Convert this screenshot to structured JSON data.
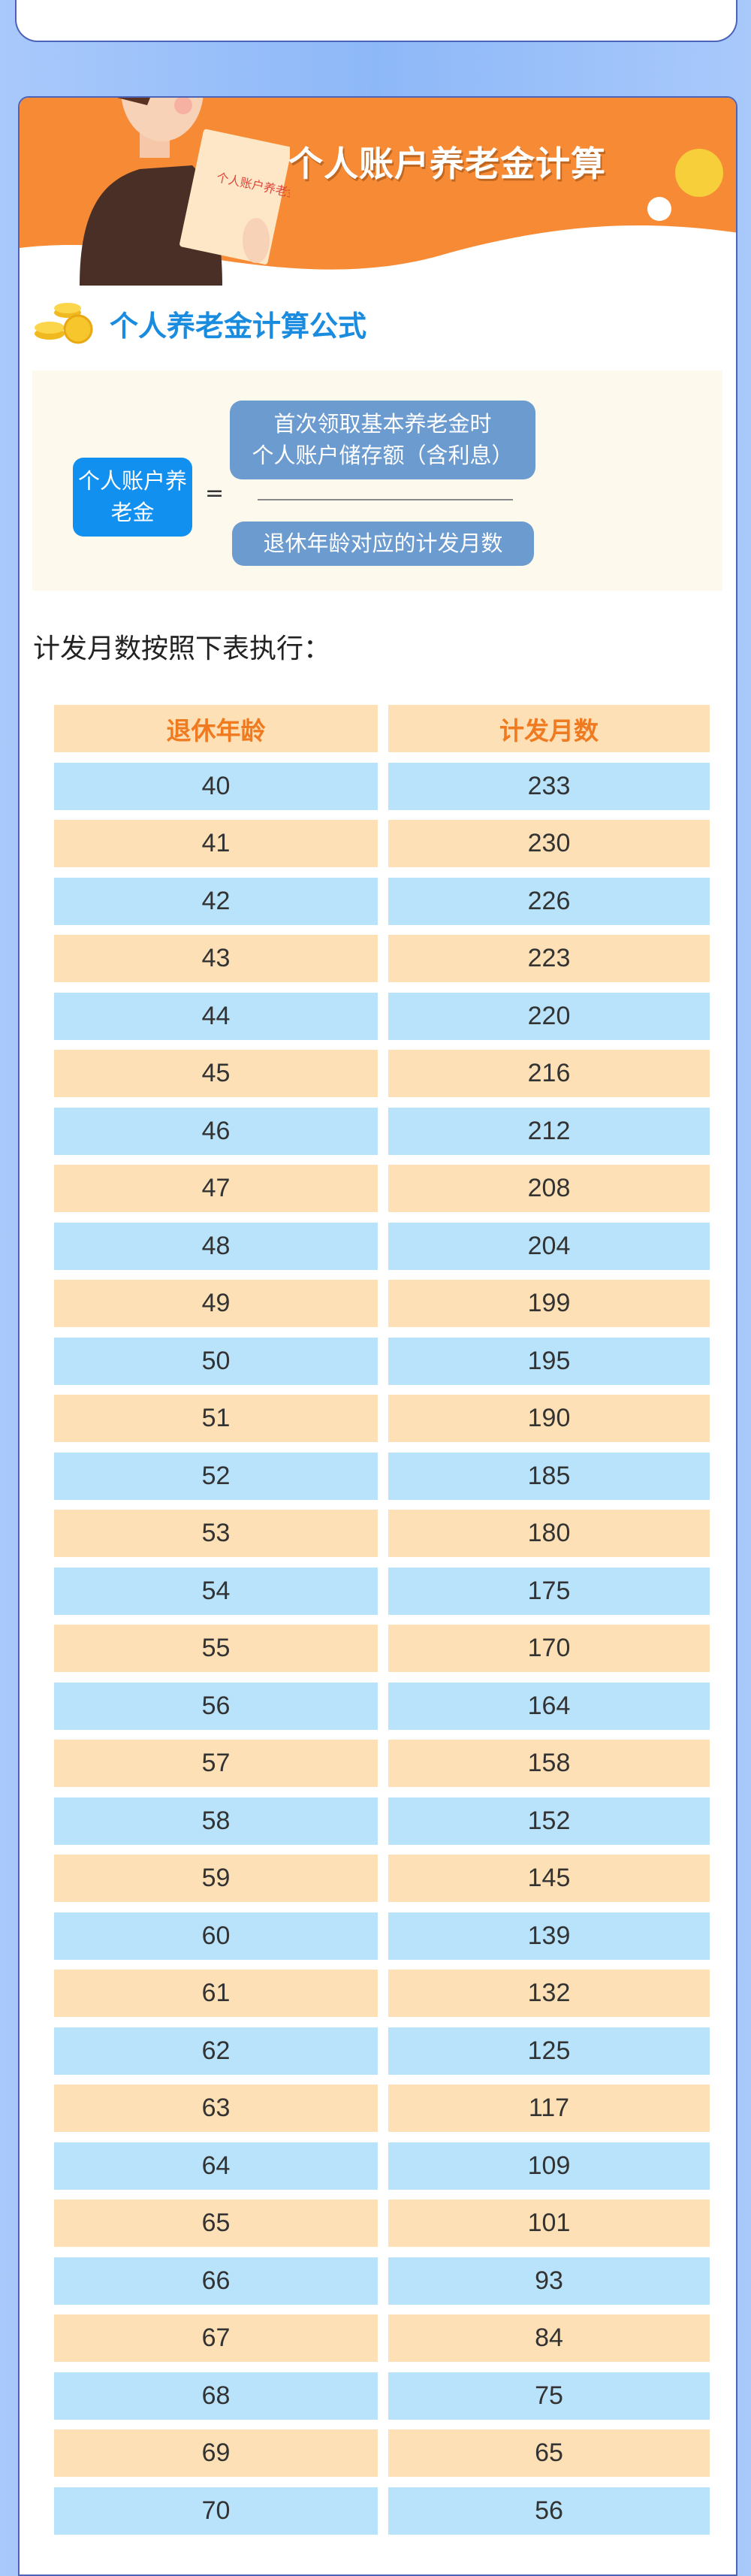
{
  "banner": {
    "title": "个人账户养老金计算",
    "book_text": "个人账户养老金"
  },
  "section": {
    "title": "个人养老金计算公式",
    "icon": "coins-icon"
  },
  "formula": {
    "left": "个人账户养老金",
    "equals": "=",
    "numerator_line1": "首次领取基本养老金时",
    "numerator_line2": "个人账户储存额（含利息）",
    "denominator": "退休年龄对应的计发月数"
  },
  "note": "计发月数按照下表执行：",
  "table": {
    "headers": [
      "退休年龄",
      "计发月数"
    ],
    "rows": [
      [
        "40",
        "233"
      ],
      [
        "41",
        "230"
      ],
      [
        "42",
        "226"
      ],
      [
        "43",
        "223"
      ],
      [
        "44",
        "220"
      ],
      [
        "45",
        "216"
      ],
      [
        "46",
        "212"
      ],
      [
        "47",
        "208"
      ],
      [
        "48",
        "204"
      ],
      [
        "49",
        "199"
      ],
      [
        "50",
        "195"
      ],
      [
        "51",
        "190"
      ],
      [
        "52",
        "185"
      ],
      [
        "53",
        "180"
      ],
      [
        "54",
        "175"
      ],
      [
        "55",
        "170"
      ],
      [
        "56",
        "164"
      ],
      [
        "57",
        "158"
      ],
      [
        "58",
        "152"
      ],
      [
        "59",
        "145"
      ],
      [
        "60",
        "139"
      ],
      [
        "61",
        "132"
      ],
      [
        "62",
        "125"
      ],
      [
        "63",
        "117"
      ],
      [
        "64",
        "109"
      ],
      [
        "65",
        "101"
      ],
      [
        "66",
        "93"
      ],
      [
        "67",
        "84"
      ],
      [
        "68",
        "75"
      ],
      [
        "69",
        "65"
      ],
      [
        "70",
        "56"
      ]
    ]
  },
  "colors": {
    "banner": "#f78a35",
    "header_text": "#f07a20",
    "row_orange": "#fde0b5",
    "row_blue": "#b8e3fb",
    "section_title": "#1a8ce0",
    "formula_left": "#1190f0",
    "formula_pill": "#6c9bd0"
  }
}
